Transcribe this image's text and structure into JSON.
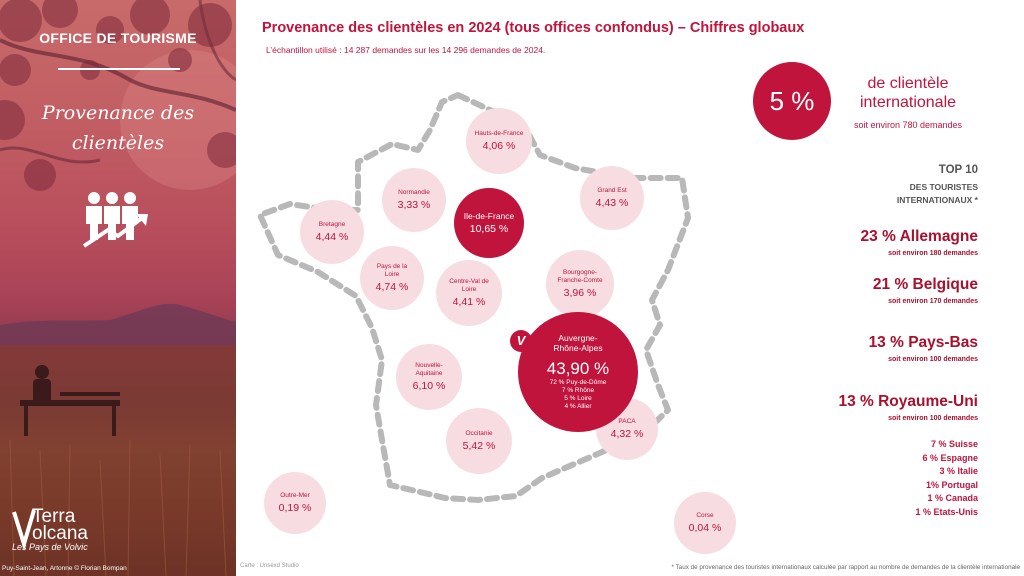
{
  "left_panel": {
    "office_title": "OFFICE DE TOURISME",
    "section_title_line1": "Provenance des",
    "section_title_line2": "clientèles",
    "people_icon": "people-growth-icon",
    "brand_name_line1": "Terra",
    "brand_name_line2": "olcana",
    "brand_sub": "Les Pays de Volvic",
    "photo_credit": "Puy-Saint-Jean, Artonne © Florian Bompan"
  },
  "header": {
    "title": "Provenance des clientèles en 2024 (tous offices confondus) – Chiffres globaux",
    "subtitle": "L’échantillon utilisé : 14 287 demandes sur les 14 296 demandes de 2024."
  },
  "map": {
    "credit": "Carte : Unsexd Studio",
    "badge": "V",
    "regions": [
      {
        "name": "Hauts-de-France",
        "value": "4,06 %"
      },
      {
        "name": "Normandie",
        "value": "3,33 %"
      },
      {
        "name": "Ile-de-France",
        "value": "10,65 %"
      },
      {
        "name": "Grand Est",
        "value": "4,43 %"
      },
      {
        "name": "Bretagne",
        "value": "4,44 %"
      },
      {
        "name": "Pays de la Loire",
        "value": "4,74 %"
      },
      {
        "name": "Centre-Val de Loire",
        "value": "4,41 %"
      },
      {
        "name": "Bourgogne-Franche-Comte",
        "value": "3,96 %"
      },
      {
        "name": "Nouvelle-Aquitaine",
        "value": "6,10 %"
      },
      {
        "name": "Occitanie",
        "value": "5,42 %"
      },
      {
        "name": "PACA",
        "value": "4,32 %"
      },
      {
        "name": "Outre-Mer",
        "value": "0,19 %"
      },
      {
        "name": "Corse",
        "value": "0,04 %"
      }
    ],
    "auvergne": {
      "name_line1": "Auvergne-",
      "name_line2": "Rhône-Alpes",
      "value": "43,90 %",
      "details": [
        "72 %  Puy-de-Dôme",
        "7 % Rhône",
        "5 % Loire",
        "4 % Allier"
      ]
    }
  },
  "international": {
    "percent": "5 %",
    "label_line1": "de clientèle",
    "label_line2": "internationale",
    "sub": "soit environ 780 demandes",
    "top10_title": "TOP 10",
    "top10_sub_line1": "DES TOURISTES",
    "top10_sub_line2": "INTERNATIONAUX *",
    "countries": [
      {
        "label": "23 % Allemagne",
        "sub": "soit environ 180 demandes"
      },
      {
        "label": "21 % Belgique",
        "sub": "soit environ 170 demandes"
      },
      {
        "label": "13 %  Pays-Bas",
        "sub": "soit environ 100 demandes"
      },
      {
        "label": "13 %  Royaume-Uni",
        "sub": "soit environ 100 demandes"
      }
    ],
    "minor": [
      "7 %   Suisse",
      "6 %   Espagne",
      "3 %   Italie",
      "1% Portugal",
      "1 %  Canada",
      "1 %  Etats-Unis"
    ]
  },
  "footnote": "* Taux de provenance des touristes internationaux calculée par rapport au nombre de demandes de la clientèle internationale",
  "colors": {
    "accent": "#c0143c",
    "light_pink": "#f7dde1",
    "dark_red": "#a8102e"
  }
}
